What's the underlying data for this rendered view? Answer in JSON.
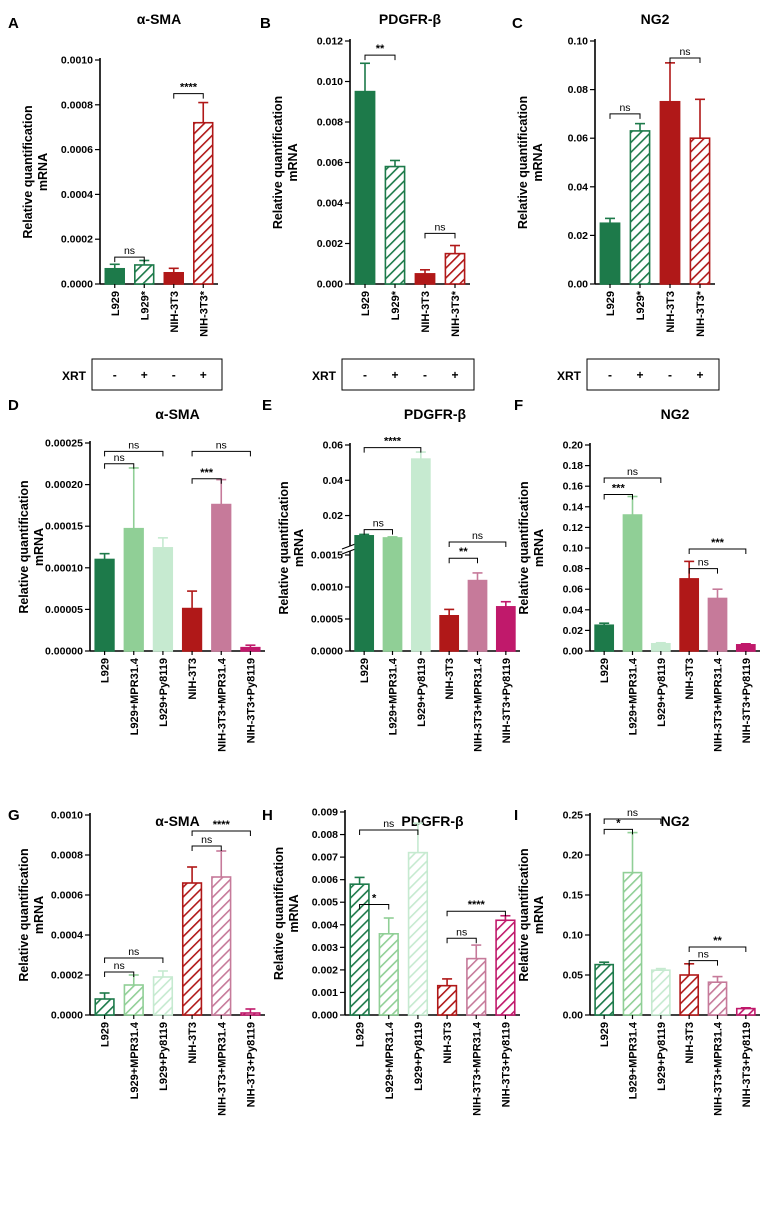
{
  "colors": {
    "dark_green": "#1d7a4a",
    "medium_green": "#90cf96",
    "light_green": "#c6ead0",
    "dark_red": "#b01818",
    "mauve": "#c67a9a",
    "magenta": "#c0196b"
  },
  "shared": {
    "ylabel_line1": "Relative quantification",
    "ylabel_line2": "mRNA",
    "xrt_label": "XRT",
    "xrt_signs": [
      "-",
      "+",
      "-",
      "+"
    ]
  },
  "chart_data": [
    {
      "id": "A",
      "label": "A",
      "type": "bar",
      "title": "α-SMA",
      "categories": [
        "L929",
        "L929*",
        "NIH-3T3",
        "NIH-3T3*"
      ],
      "values": [
        6.8e-05,
        8.5e-05,
        5e-05,
        0.00072
      ],
      "errors": [
        2e-05,
        2e-05,
        2e-05,
        9e-05
      ],
      "colors": [
        "dark_green",
        "dark_green",
        "dark_red",
        "dark_red"
      ],
      "patterns": [
        "solid",
        "hatch",
        "solid",
        "hatch"
      ],
      "ylim": [
        0,
        0.001
      ],
      "ticks": [
        "0.0000",
        "0.0002",
        "0.0004",
        "0.0006",
        "0.0008",
        "0.0010"
      ],
      "brackets": [
        {
          "from": 0,
          "to": 1,
          "y": 0.00012,
          "label": "ns"
        },
        {
          "from": 2,
          "to": 3,
          "y": 0.00085,
          "label": "****"
        }
      ]
    },
    {
      "id": "B",
      "label": "B",
      "type": "bar",
      "title": "PDGFR-β",
      "categories": [
        "L929",
        "L929*",
        "NIH-3T3",
        "NIH-3T3*"
      ],
      "values": [
        0.0095,
        0.0058,
        0.0005,
        0.0015
      ],
      "errors": [
        0.0014,
        0.0003,
        0.0002,
        0.0004
      ],
      "colors": [
        "dark_green",
        "dark_green",
        "dark_red",
        "dark_red"
      ],
      "patterns": [
        "solid",
        "hatch",
        "solid",
        "hatch"
      ],
      "ylim": [
        0,
        0.012
      ],
      "ticks": [
        "0.000",
        "0.002",
        "0.004",
        "0.006",
        "0.008",
        "0.010",
        "0.012"
      ],
      "brackets": [
        {
          "from": 0,
          "to": 1,
          "y": 0.0113,
          "label": "**"
        },
        {
          "from": 2,
          "to": 3,
          "y": 0.0025,
          "label": "ns"
        }
      ]
    },
    {
      "id": "C",
      "label": "C",
      "type": "bar",
      "title": "NG2",
      "categories": [
        "L929",
        "L929*",
        "NIH-3T3",
        "NIH-3T3*"
      ],
      "values": [
        0.025,
        0.063,
        0.075,
        0.06
      ],
      "errors": [
        0.002,
        0.003,
        0.016,
        0.016
      ],
      "colors": [
        "dark_green",
        "dark_green",
        "dark_red",
        "dark_red"
      ],
      "patterns": [
        "solid",
        "hatch",
        "solid",
        "hatch"
      ],
      "ylim": [
        0,
        0.1
      ],
      "ticks": [
        "0.00",
        "0.02",
        "0.04",
        "0.06",
        "0.08",
        "0.10"
      ],
      "brackets": [
        {
          "from": 0,
          "to": 1,
          "y": 0.07,
          "label": "ns"
        },
        {
          "from": 2,
          "to": 3,
          "y": 0.093,
          "label": "ns"
        }
      ]
    },
    {
      "id": "D",
      "label": "D",
      "type": "bar",
      "title": "α-SMA",
      "categories": [
        "L929",
        "L929+MPR31.4",
        "L929+Py8119",
        "NIH-3T3",
        "NIH-3T3+MPR31.4",
        "NIH-3T3+Py8119"
      ],
      "values": [
        0.00011,
        0.000147,
        0.000124,
        5.1e-05,
        0.000176,
        4e-06
      ],
      "errors": [
        7e-06,
        7.3e-05,
        1.2e-05,
        2.1e-05,
        3e-05,
        3e-06
      ],
      "colors": [
        "dark_green",
        "medium_green",
        "light_green",
        "dark_red",
        "mauve",
        "magenta"
      ],
      "patterns": [
        "solid",
        "solid",
        "solid",
        "solid",
        "solid",
        "solid"
      ],
      "ylim": [
        0,
        0.00025
      ],
      "ticks": [
        "0.00000",
        "0.00005",
        "0.00010",
        "0.00015",
        "0.00020",
        "0.00025"
      ],
      "brackets": [
        {
          "from": 0,
          "to": 2,
          "y": 0.00024,
          "label": "ns"
        },
        {
          "from": 0,
          "to": 1,
          "y": 0.000225,
          "label": "ns"
        },
        {
          "from": 3,
          "to": 5,
          "y": 0.00024,
          "label": "ns"
        },
        {
          "from": 3,
          "to": 4,
          "y": 0.000207,
          "label": "***"
        }
      ]
    },
    {
      "id": "E",
      "label": "E",
      "type": "bar",
      "title": "PDGFR-β",
      "categories": [
        "L929",
        "L929+MPR31.4",
        "L929+Py8119",
        "NIH-3T3",
        "NIH-3T3+MPR31.4",
        "NIH-3T3+Py8119"
      ],
      "values": [
        0.0085,
        0.0073,
        0.052,
        0.00055,
        0.0011,
        0.00069
      ],
      "errors": [
        0.0008,
        0.0006,
        0.004,
        0.0001,
        0.00012,
        8e-05
      ],
      "colors": [
        "dark_green",
        "medium_green",
        "light_green",
        "dark_red",
        "mauve",
        "magenta"
      ],
      "patterns": [
        "solid",
        "solid",
        "solid",
        "solid",
        "solid",
        "solid"
      ],
      "broken_axis": true,
      "lower_ylim": [
        0,
        0.0015
      ],
      "upper_ylim": [
        0.005,
        0.06
      ],
      "ticks_lower": [
        "0.0000",
        "0.0005",
        "0.0010",
        "0.0015"
      ],
      "ticks_upper": [
        "0.02",
        "0.04",
        "0.06"
      ],
      "brackets": [
        {
          "from": 0,
          "to": 2,
          "y": 0.0585,
          "label": "****"
        },
        {
          "from": 0,
          "to": 1,
          "y": 0.012,
          "label": "ns"
        },
        {
          "from": 3,
          "to": 5,
          "y": 0.0017,
          "label": "ns"
        },
        {
          "from": 3,
          "to": 4,
          "y": 0.00145,
          "label": "**"
        }
      ]
    },
    {
      "id": "F",
      "label": "F",
      "type": "bar",
      "title": "NG2",
      "categories": [
        "L929",
        "L929+MPR31.4",
        "L929+Py8119",
        "NIH-3T3",
        "NIH-3T3+MPR31.4",
        "NIH-3T3+Py8119"
      ],
      "values": [
        0.025,
        0.132,
        0.007,
        0.07,
        0.051,
        0.006
      ],
      "errors": [
        0.002,
        0.018,
        0.001,
        0.017,
        0.009,
        0.001
      ],
      "colors": [
        "dark_green",
        "medium_green",
        "light_green",
        "dark_red",
        "mauve",
        "magenta"
      ],
      "patterns": [
        "solid",
        "solid",
        "solid",
        "solid",
        "solid",
        "solid"
      ],
      "ylim": [
        0,
        0.2
      ],
      "ticks": [
        "0.00",
        "0.02",
        "0.04",
        "0.06",
        "0.08",
        "0.10",
        "0.12",
        "0.14",
        "0.16",
        "0.18",
        "0.20"
      ],
      "brackets": [
        {
          "from": 0,
          "to": 2,
          "y": 0.168,
          "label": "ns"
        },
        {
          "from": 0,
          "to": 1,
          "y": 0.152,
          "label": "***"
        },
        {
          "from": 3,
          "to": 5,
          "y": 0.099,
          "label": "***"
        },
        {
          "from": 3,
          "to": 4,
          "y": 0.08,
          "label": "ns"
        }
      ]
    },
    {
      "id": "G",
      "label": "G",
      "type": "bar",
      "title": "α-SMA",
      "categories": [
        "L929",
        "L929+MPR31.4",
        "L929+Py8119",
        "NIH-3T3",
        "NIH-3T3+MPR31.4",
        "NIH-3T3+Py8119"
      ],
      "values": [
        8e-05,
        0.00015,
        0.00019,
        0.00066,
        0.00069,
        1e-05
      ],
      "errors": [
        3e-05,
        5e-05,
        3e-05,
        8e-05,
        0.00013,
        2e-05
      ],
      "colors": [
        "dark_green",
        "medium_green",
        "light_green",
        "dark_red",
        "mauve",
        "magenta"
      ],
      "patterns": [
        "hatch",
        "hatch",
        "hatch",
        "hatch",
        "hatch",
        "hatch"
      ],
      "ylim": [
        0,
        0.001
      ],
      "ticks": [
        "0.0000",
        "0.0002",
        "0.0004",
        "0.0006",
        "0.0008",
        "0.0010"
      ],
      "brackets": [
        {
          "from": 0,
          "to": 2,
          "y": 0.000285,
          "label": "ns"
        },
        {
          "from": 0,
          "to": 1,
          "y": 0.000215,
          "label": "ns"
        },
        {
          "from": 3,
          "to": 5,
          "y": 0.00092,
          "label": "****"
        },
        {
          "from": 3,
          "to": 4,
          "y": 0.000845,
          "label": "ns"
        }
      ]
    },
    {
      "id": "H",
      "label": "H",
      "type": "bar",
      "title": "PDGFR-β",
      "categories": [
        "L929",
        "L929+MPR31.4",
        "L929+Py8119",
        "NIH-3T3",
        "NIH-3T3+MPR31.4",
        "NIH-3T3+Py8119"
      ],
      "values": [
        0.0058,
        0.0036,
        0.0072,
        0.0013,
        0.0025,
        0.0042
      ],
      "errors": [
        0.0003,
        0.0007,
        0.0013,
        0.0003,
        0.0006,
        0.0002
      ],
      "colors": [
        "dark_green",
        "medium_green",
        "light_green",
        "dark_red",
        "mauve",
        "magenta"
      ],
      "patterns": [
        "hatch",
        "hatch",
        "hatch",
        "hatch",
        "hatch",
        "hatch"
      ],
      "ylim": [
        0,
        0.009
      ],
      "ticks": [
        "0.000",
        "0.001",
        "0.002",
        "0.003",
        "0.004",
        "0.005",
        "0.006",
        "0.007",
        "0.008",
        "0.009"
      ],
      "brackets": [
        {
          "from": 0,
          "to": 2,
          "y": 0.0082,
          "label": "ns"
        },
        {
          "from": 0,
          "to": 1,
          "y": 0.0049,
          "label": "*"
        },
        {
          "from": 3,
          "to": 5,
          "y": 0.0046,
          "label": "****"
        },
        {
          "from": 3,
          "to": 4,
          "y": 0.0034,
          "label": "ns"
        }
      ]
    },
    {
      "id": "I",
      "label": "I",
      "type": "bar",
      "title": "NG2",
      "categories": [
        "L929",
        "L929+MPR31.4",
        "L929+Py8119",
        "NIH-3T3",
        "NIH-3T3+MPR31.4",
        "NIH-3T3+Py8119"
      ],
      "values": [
        0.063,
        0.178,
        0.056,
        0.05,
        0.041,
        0.008
      ],
      "errors": [
        0.003,
        0.05,
        0.002,
        0.014,
        0.007,
        0.001
      ],
      "colors": [
        "dark_green",
        "medium_green",
        "light_green",
        "dark_red",
        "mauve",
        "magenta"
      ],
      "patterns": [
        "hatch",
        "hatch",
        "hatch",
        "hatch",
        "hatch",
        "hatch"
      ],
      "ylim": [
        0,
        0.25
      ],
      "ticks": [
        "0.00",
        "0.05",
        "0.10",
        "0.15",
        "0.20",
        "0.25"
      ],
      "brackets": [
        {
          "from": 0,
          "to": 2,
          "y": 0.245,
          "label": "ns"
        },
        {
          "from": 0,
          "to": 1,
          "y": 0.232,
          "label": "*"
        },
        {
          "from": 3,
          "to": 5,
          "y": 0.085,
          "label": "**"
        },
        {
          "from": 3,
          "to": 4,
          "y": 0.068,
          "label": "ns"
        }
      ]
    }
  ]
}
